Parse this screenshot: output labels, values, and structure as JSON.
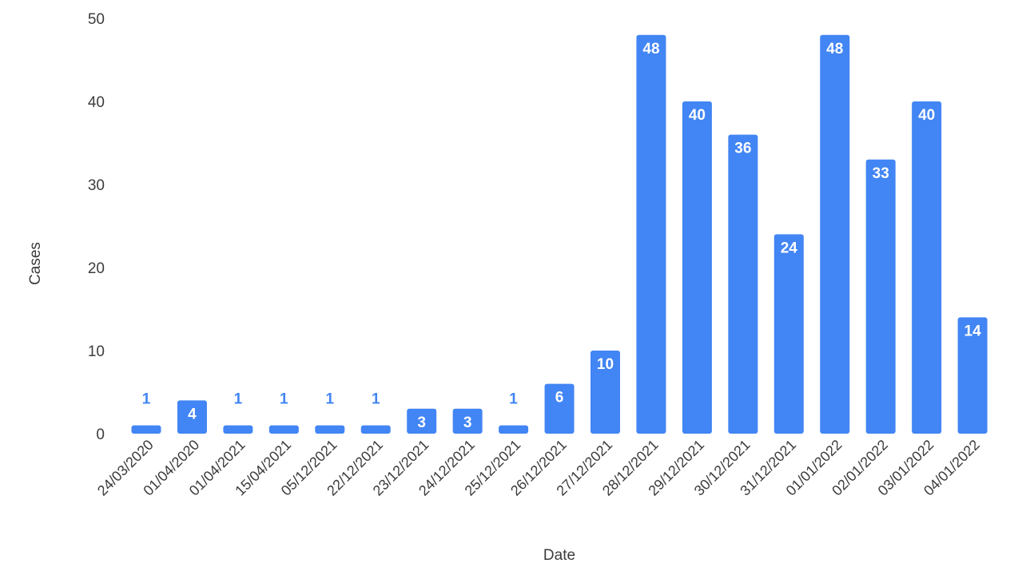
{
  "chart_data": {
    "type": "bar",
    "title": "",
    "xlabel": "Date",
    "ylabel": "Cases",
    "ylim": [
      0,
      50
    ],
    "yticks": [
      0,
      10,
      20,
      30,
      40,
      50
    ],
    "grid": false,
    "legend": "none",
    "bar_color": "#4285f4",
    "categories": [
      "24/03/2020",
      "01/04/2020",
      "01/04/2021",
      "15/04/2021",
      "05/12/2021",
      "22/12/2021",
      "23/12/2021",
      "24/12/2021",
      "25/12/2021",
      "26/12/2021",
      "27/12/2021",
      "28/12/2021",
      "29/12/2021",
      "30/12/2021",
      "31/12/2021",
      "01/01/2022",
      "02/01/2022",
      "03/01/2022",
      "04/01/2022"
    ],
    "values": [
      1,
      4,
      1,
      1,
      1,
      1,
      3,
      3,
      1,
      6,
      10,
      48,
      40,
      36,
      24,
      48,
      33,
      40,
      14
    ]
  }
}
